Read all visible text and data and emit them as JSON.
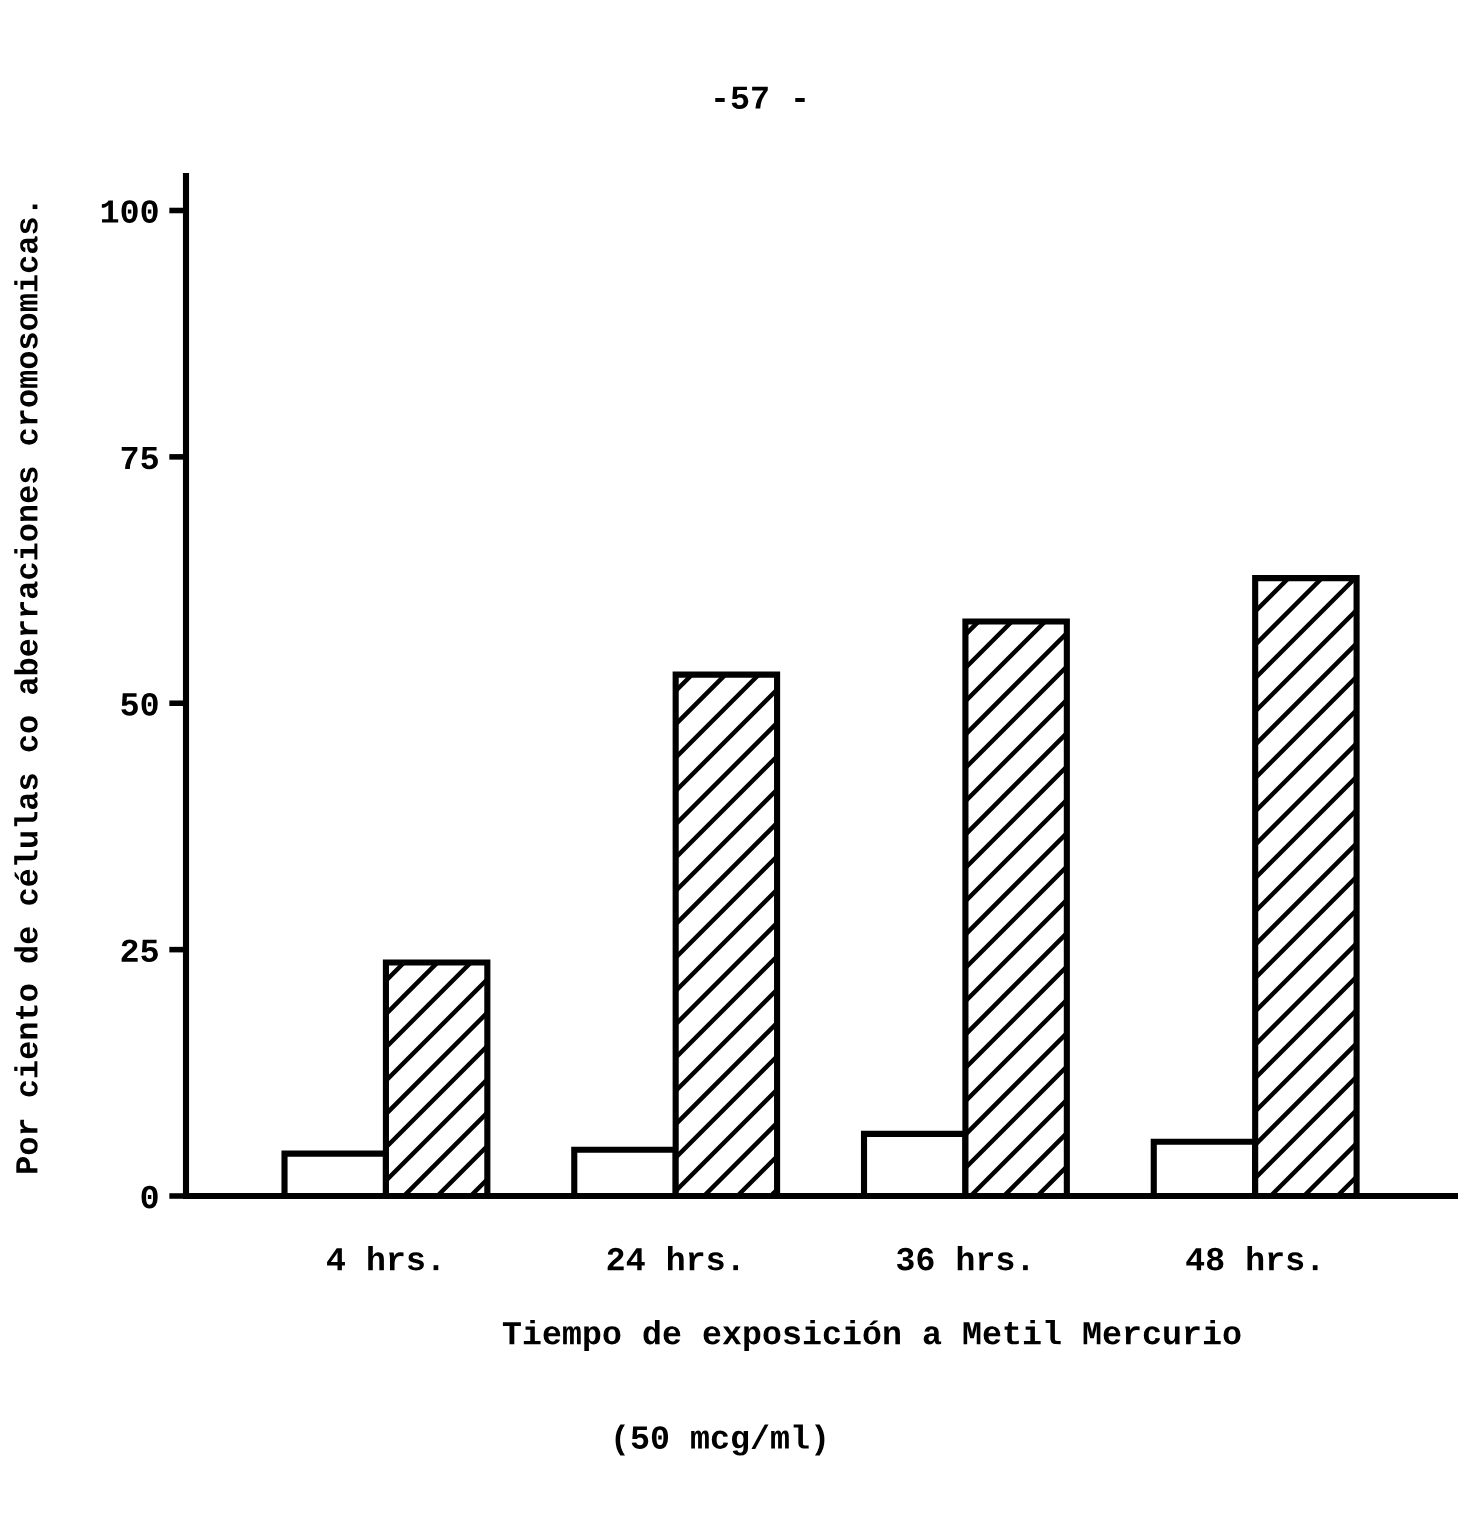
{
  "chart_data": {
    "type": "bar",
    "categories": [
      "4 hrs.",
      "24 hrs.",
      "36 hrs.",
      "48 hrs."
    ],
    "series": [
      {
        "color": "#ffffff",
        "values": [
          4.3,
          4.7,
          6.3,
          5.5
        ]
      },
      {
        "color": "#000000",
        "values": [
          23.7,
          52.9,
          58.3,
          62.7
        ]
      }
    ],
    "ylabel": "Por ciento de células co aberraciones cromosomicas.",
    "xlabel": "Tiempo de exposición a Metil Mercurio",
    "annotations": [
      "-57 -",
      "(50 mcg/ml)"
    ],
    "ylim": [
      0,
      103.5
    ],
    "yticks": [
      0,
      25,
      50,
      75,
      100
    ],
    "grid": false
  }
}
